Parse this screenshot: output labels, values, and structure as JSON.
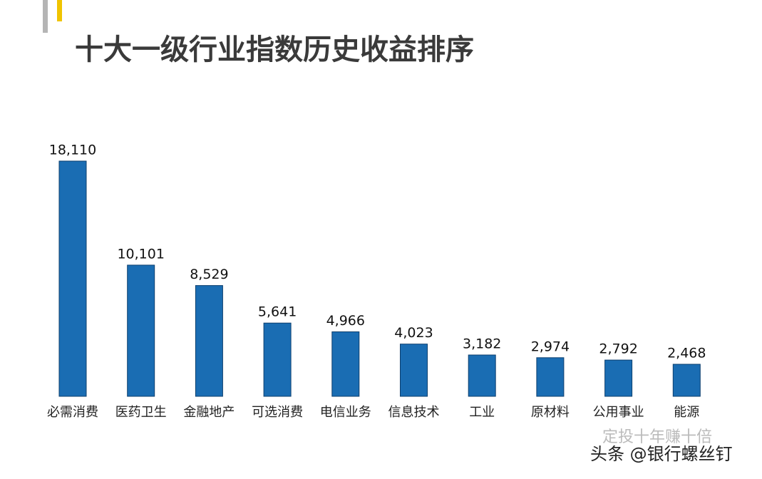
{
  "chart_data": {
    "type": "bar",
    "title": "十大一级行业指数历史收益排序",
    "categories": [
      "必需消费",
      "医药卫生",
      "金融地产",
      "可选消费",
      "电信业务",
      "信息技术",
      "工业",
      "原材料",
      "公用事业",
      "能源"
    ],
    "values": [
      18110,
      10101,
      8529,
      5641,
      4966,
      4023,
      3182,
      2974,
      2792,
      2468
    ],
    "value_labels": [
      "18,110",
      "10,101",
      "8,529",
      "5,641",
      "4,966",
      "4,023",
      "3,182",
      "2,974",
      "2,792",
      "2,468"
    ],
    "color": "#1a6db3"
  },
  "watermarks": [
    "定投十年赚十倍",
    "头条 @银行螺丝钉"
  ]
}
